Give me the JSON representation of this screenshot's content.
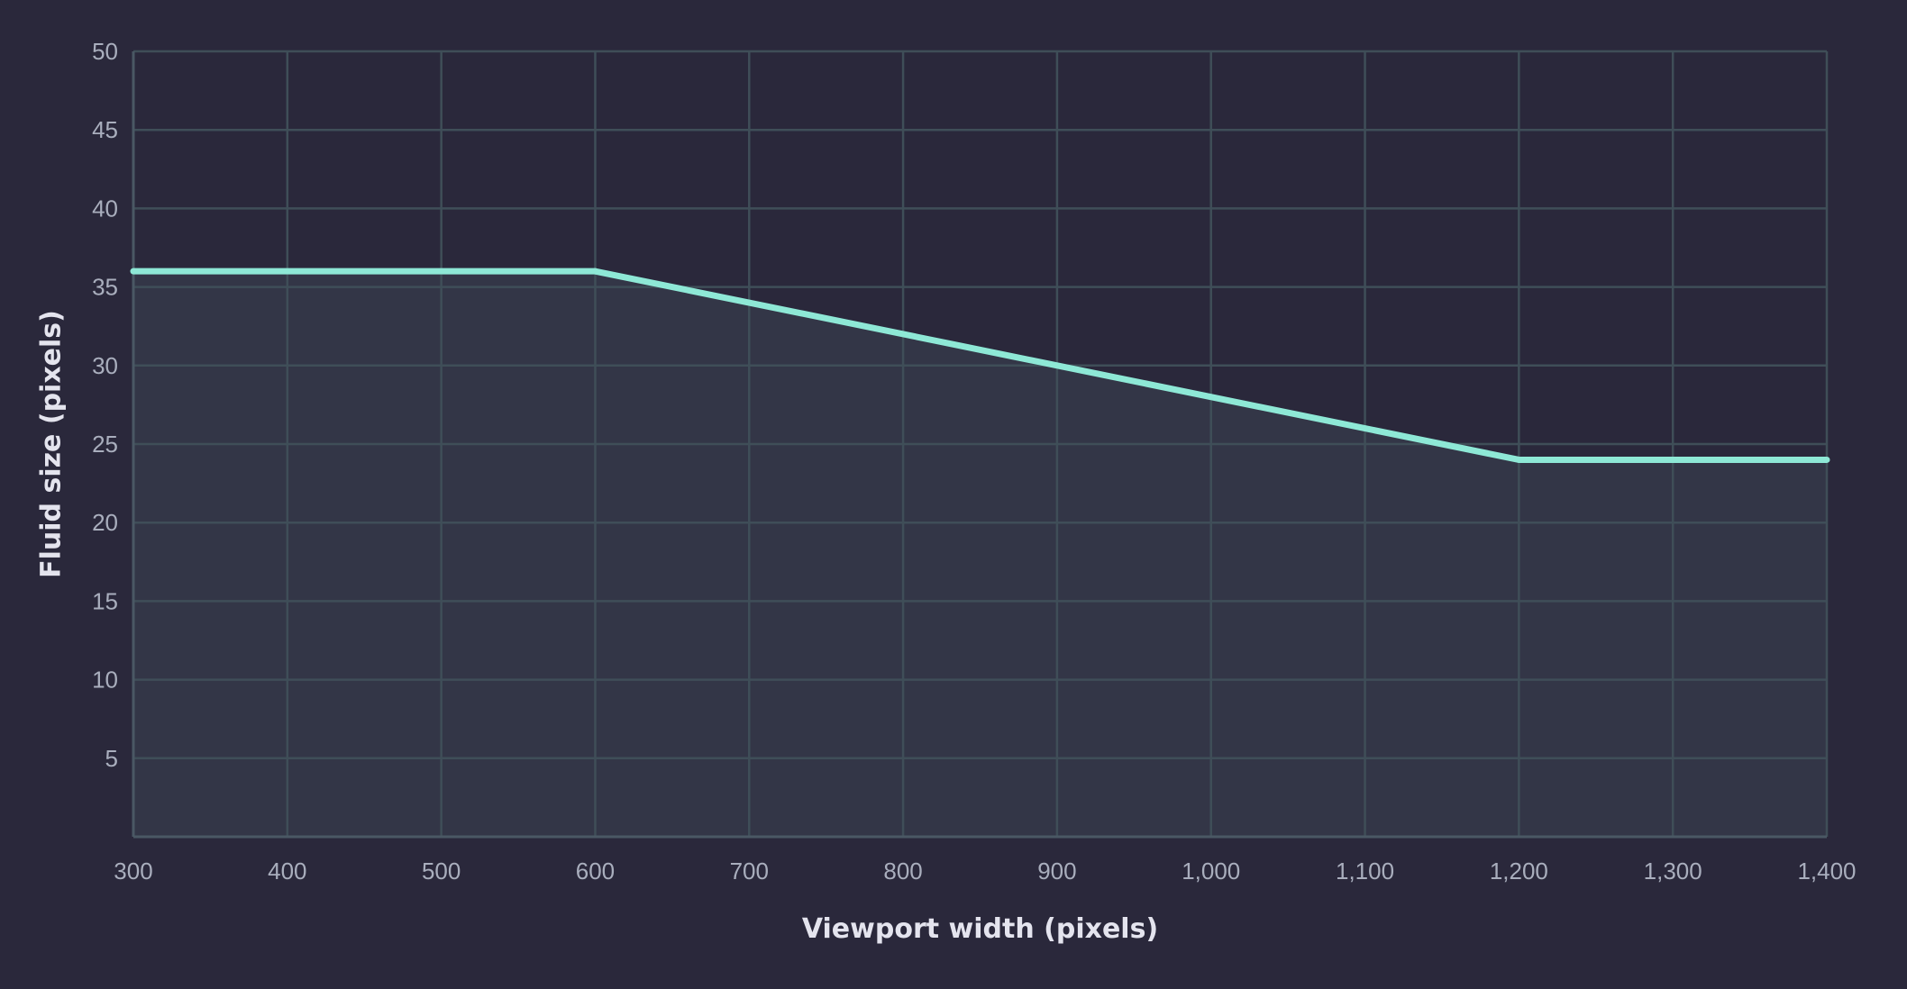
{
  "colors": {
    "background": "#2a283b",
    "grid": "#3f4e58",
    "axis": "#4a5864",
    "line": "#8ee8d6",
    "area": "#333647",
    "tick_text": "#a9aebd",
    "axis_title_text": "#e4e4ee"
  },
  "chart_data": {
    "type": "line",
    "title": "",
    "xlabel": "Viewport width (pixels)",
    "ylabel": "Fluid size (pixels)",
    "xlim": [
      300,
      1400
    ],
    "ylim": [
      0,
      50
    ],
    "grid": true,
    "area_fill": true,
    "x_ticks": [
      300,
      400,
      500,
      600,
      700,
      800,
      900,
      1000,
      1100,
      1200,
      1300,
      1400
    ],
    "x_tick_labels": [
      "300",
      "400",
      "500",
      "600",
      "700",
      "800",
      "900",
      "1,000",
      "1,100",
      "1,200",
      "1,300",
      "1,400"
    ],
    "y_ticks": [
      5,
      10,
      15,
      20,
      25,
      30,
      35,
      40,
      45,
      50
    ],
    "y_tick_labels": [
      "5",
      "10",
      "15",
      "20",
      "25",
      "30",
      "35",
      "40",
      "45",
      "50"
    ],
    "series": [
      {
        "x": [
          300,
          600,
          1200,
          1400
        ],
        "y": [
          36,
          36,
          24,
          24
        ]
      }
    ]
  }
}
